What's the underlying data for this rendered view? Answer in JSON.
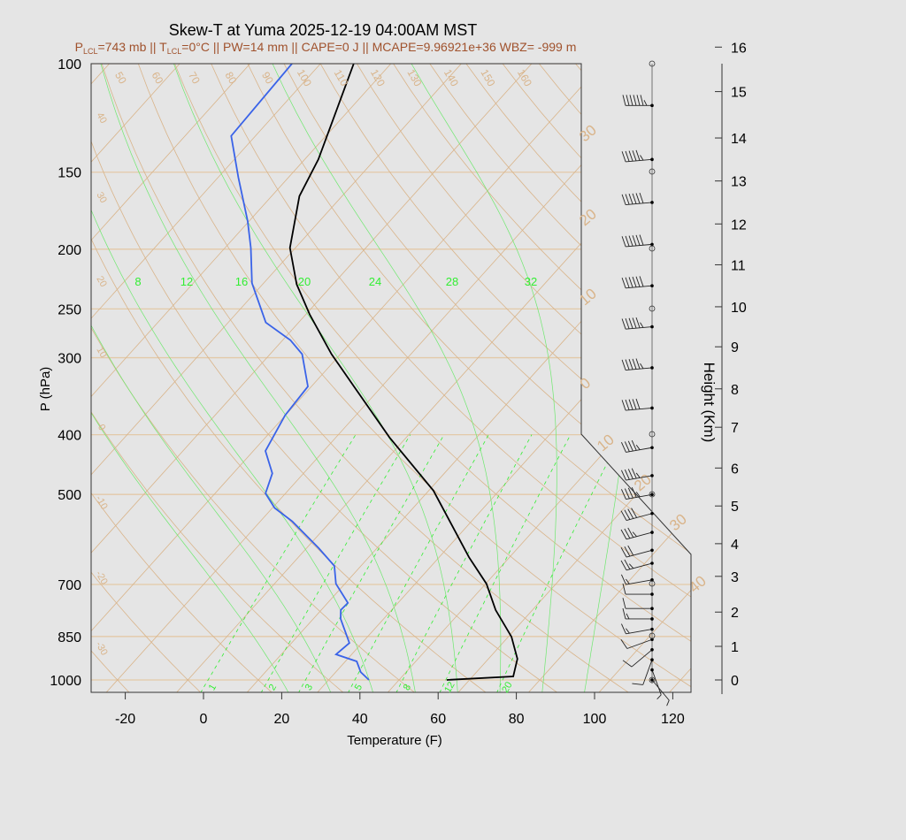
{
  "chart_data": {
    "type": "line",
    "title": "Skew-T at Yuma 2025-12-19 04:00AM MST",
    "subtitle": {
      "p_lcl": "743 mb",
      "t_lcl": "0°C",
      "pw": "PW=14 mm",
      "cape": "CAPE=0 J",
      "mcape": "MCAPE=9.96921e+36 WBZ= -999 m"
    },
    "xlabel": "Temperature (F)",
    "ylabel": "P (hPa)",
    "y2label": "Height (Km)",
    "xlim": [
      -28,
      125
    ],
    "ylim": [
      1050,
      100
    ],
    "y_scale": "log",
    "x_ticks": [
      -20,
      0,
      20,
      40,
      60,
      80,
      100,
      120
    ],
    "y_ticks": [
      100,
      150,
      200,
      250,
      300,
      400,
      500,
      700,
      850,
      1000
    ],
    "height_ticks": [
      0,
      1,
      2,
      3,
      4,
      5,
      6,
      7,
      8,
      9,
      10,
      11,
      12,
      13,
      14,
      15,
      16
    ],
    "height_tick_pressure": [
      1000,
      882,
      776,
      679,
      601,
      522,
      453,
      389,
      337,
      288,
      248,
      212,
      182,
      155,
      132,
      111,
      94
    ],
    "isotherm_labels_top": [
      "50",
      "60",
      "70",
      "80",
      "90",
      "100",
      "110",
      "120",
      "130",
      "140",
      "150",
      "160"
    ],
    "isotherm_labels_left": [
      "40",
      "30",
      "20",
      "10",
      "0",
      "-10",
      "-20",
      "-30"
    ],
    "isotherm_labels_right": [
      "30",
      "20",
      "10",
      "0",
      "10",
      "20",
      "30",
      "40"
    ],
    "moist_adiabat_labels": [
      "8",
      "12",
      "16",
      "20",
      "24",
      "28",
      "32"
    ],
    "mixing_ratio_labels": [
      "1",
      "2",
      "3",
      "5",
      "8",
      "12",
      "20"
    ],
    "colors": {
      "temperature": "#000000",
      "dewpoint": "#3a63e8",
      "grid": "#d9b48a",
      "moist": "#6fe86f",
      "mixing": "#33ee33",
      "subtitle": "#a0522d"
    },
    "series": [
      {
        "name": "temperature",
        "p": [
          1000,
          987,
          924,
          851,
          770,
          698,
          632,
          493,
          404,
          334,
          296,
          255,
          228,
          199,
          164,
          143,
          100
        ],
        "t": [
          62.2,
          78.4,
          75.4,
          68.8,
          58.6,
          50.2,
          39.6,
          15.2,
          -8.3,
          -29.1,
          -42.3,
          -57.1,
          -67.3,
          -77.4,
          -86.9,
          -90.5,
          -103.5
        ]
      },
      {
        "name": "dewpoint",
        "p": [
          1000,
          971,
          933,
          909,
          871,
          796,
          770,
          750,
          698,
          653,
          611,
          553,
          526,
          498,
          462,
          425,
          372,
          334,
          296,
          281,
          263,
          227,
          199,
          180,
          153,
          131,
          100
        ],
        "t": [
          42.3,
          38.4,
          34.9,
          28.0,
          28.8,
          21.0,
          19.0,
          19.2,
          11.7,
          7.2,
          -0.9,
          -13.8,
          -21.4,
          -27.1,
          -30.0,
          -36.9,
          -40.1,
          -40.9,
          -49.8,
          -56.0,
          -66.4,
          -79.0,
          -87.4,
          -94.4,
          -106.8,
          -118.2,
          -119.3
        ]
      }
    ],
    "winds": {
      "height_km": [
        0,
        0.3,
        0.6,
        0.9,
        1.2,
        1.5,
        1.8,
        2.1,
        2.5,
        2.9,
        3.4,
        3.8,
        4.3,
        4.8,
        5.3,
        5.8,
        6.5,
        7.5,
        8.5,
        9.5,
        10.5,
        11.5,
        12.5,
        13.5,
        14.7
      ],
      "speed_kt": [
        5,
        8,
        10,
        12,
        12,
        15,
        15,
        10,
        10,
        15,
        25,
        30,
        35,
        40,
        45,
        45,
        45,
        50,
        55,
        55,
        60,
        60,
        60,
        55,
        65
      ],
      "dir_deg": [
        140,
        160,
        200,
        230,
        250,
        260,
        270,
        270,
        270,
        260,
        255,
        255,
        255,
        255,
        260,
        260,
        260,
        265,
        265,
        265,
        265,
        265,
        265,
        265,
        270
      ]
    }
  }
}
